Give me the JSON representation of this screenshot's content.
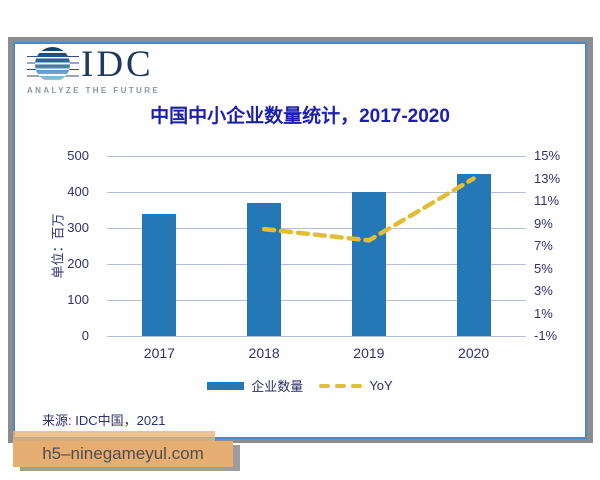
{
  "logo": {
    "name": "IDC",
    "tagline": "ANALYZE THE FUTURE"
  },
  "source": "来源: IDC中国，2021",
  "watermark": {
    "text": "h5–ninegameyul.com"
  },
  "colors": {
    "bar": "#2478b5",
    "yoy_line": "#e2be38",
    "title": "#1e20ac",
    "axis_text": "#2f3270",
    "card_border": "#4e87c3"
  },
  "chart_data": {
    "type": "bar",
    "subtype": "combo-bar-line-dual-axis",
    "title": "中国中小企业数量统计，2017-2020",
    "categories": [
      "2017",
      "2018",
      "2019",
      "2020"
    ],
    "series": [
      {
        "name": "企业数量",
        "kind": "bar",
        "axis": "left",
        "color": "#2478b5",
        "values": [
          340,
          370,
          400,
          450
        ]
      },
      {
        "name": "YoY",
        "kind": "line",
        "axis": "right",
        "color": "#e2be38",
        "style": "dashed",
        "values": [
          null,
          8.5,
          7.5,
          13
        ]
      }
    ],
    "left_axis": {
      "label": "单位：百万",
      "min": 0,
      "max": 500,
      "ticks": [
        "500",
        "400",
        "300",
        "200",
        "100",
        "0"
      ]
    },
    "right_axis": {
      "min": -1,
      "max": 15,
      "ticks": [
        "15%",
        "13%",
        "11%",
        "9%",
        "7%",
        "5%",
        "3%",
        "1%",
        "-1%"
      ]
    },
    "grid": "horizontal",
    "legend_position": "bottom"
  }
}
